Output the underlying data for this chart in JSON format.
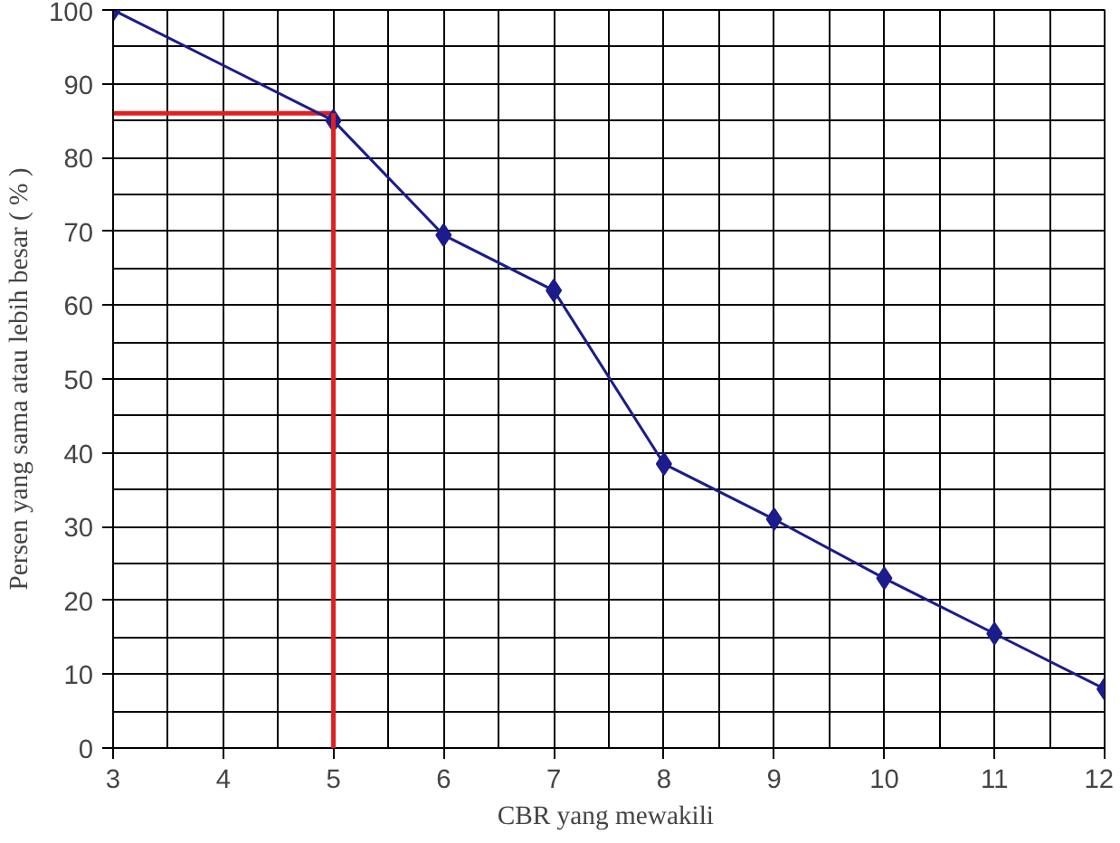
{
  "chart_data": {
    "type": "line",
    "xlabel": "CBR  yang mewakili",
    "ylabel": "Persen yang sama atau lebih besar ( % )",
    "x": [
      3,
      5,
      6,
      7,
      8,
      9,
      10,
      11,
      12
    ],
    "series": [
      {
        "color": "#1c1c8c",
        "values": [
          100,
          85,
          69.5,
          62,
          38.5,
          31,
          23,
          15.5,
          8
        ]
      }
    ],
    "xlim": [
      3,
      12
    ],
    "xticks": [
      3,
      4,
      5,
      6,
      7,
      8,
      9,
      10,
      11,
      12
    ],
    "ylim": [
      0,
      100
    ],
    "yticks": [
      0,
      10,
      20,
      30,
      40,
      50,
      60,
      70,
      80,
      90,
      100
    ],
    "grid": true,
    "marker": "diamond",
    "line_style": "solid",
    "ref_lines": [
      {
        "axis": "x",
        "value": 5,
        "color": "#e02020"
      },
      {
        "axis": "y",
        "value": 86,
        "color": "#e02020"
      }
    ]
  }
}
